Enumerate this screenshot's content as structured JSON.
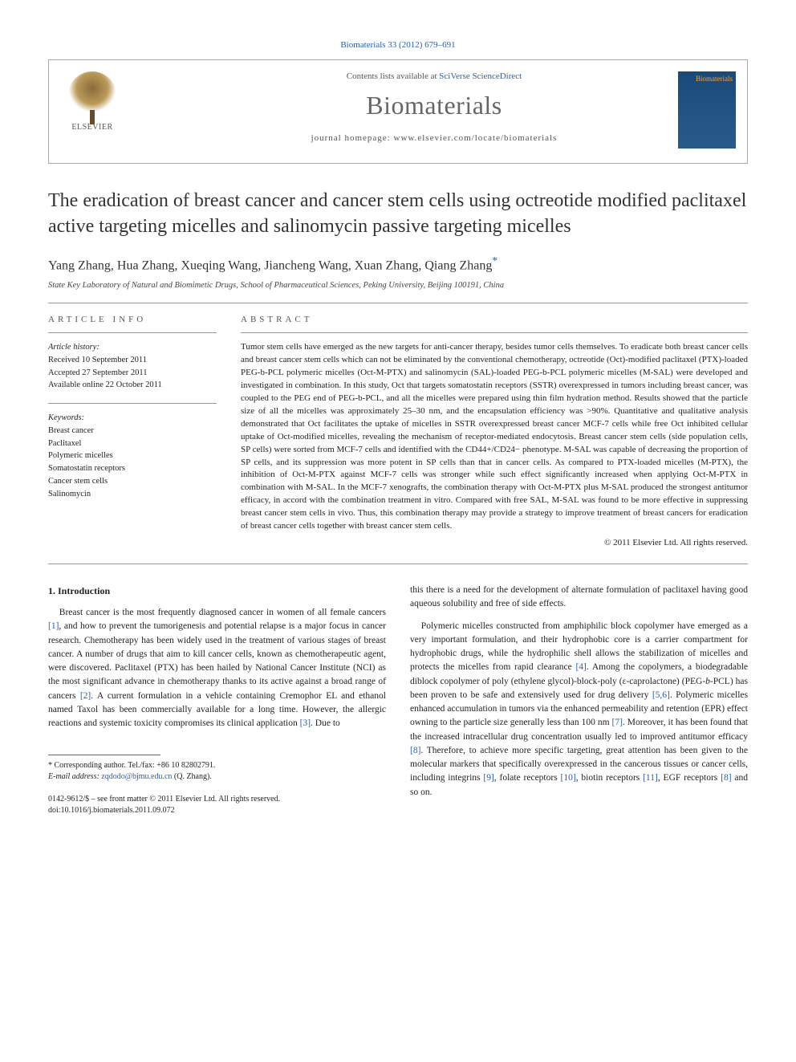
{
  "header": {
    "citation_prefix": "Biomaterials 33 (2012) 679–691",
    "contents_text": "Contents lists available at ",
    "contents_link": "SciVerse ScienceDirect",
    "journal_name": "Biomaterials",
    "homepage_prefix": "journal homepage: ",
    "homepage_url": "www.elsevier.com/locate/biomaterials",
    "elsevier_label": "ELSEVIER",
    "cover_label": "Biomaterials"
  },
  "article": {
    "title": "The eradication of breast cancer and cancer stem cells using octreotide modified paclitaxel active targeting micelles and salinomycin passive targeting micelles",
    "authors": "Yang Zhang, Hua Zhang, Xueqing Wang, Jiancheng Wang, Xuan Zhang, Qiang Zhang",
    "corr_mark": "*",
    "affiliation": "State Key Laboratory of Natural and Biomimetic Drugs, School of Pharmaceutical Sciences, Peking University, Beijing 100191, China"
  },
  "info": {
    "heading": "ARTICLE INFO",
    "history_label": "Article history:",
    "received": "Received 10 September 2011",
    "accepted": "Accepted 27 September 2011",
    "available": "Available online 22 October 2011",
    "keywords_label": "Keywords:",
    "keywords": [
      "Breast cancer",
      "Paclitaxel",
      "Polymeric micelles",
      "Somatostatin receptors",
      "Cancer stem cells",
      "Salinomycin"
    ]
  },
  "abstract": {
    "heading": "ABSTRACT",
    "text": "Tumor stem cells have emerged as the new targets for anti-cancer therapy, besides tumor cells themselves. To eradicate both breast cancer cells and breast cancer stem cells which can not be eliminated by the conventional chemotherapy, octreotide (Oct)-modified paclitaxel (PTX)-loaded PEG-b-PCL polymeric micelles (Oct-M-PTX) and salinomycin (SAL)-loaded PEG-b-PCL polymeric micelles (M-SAL) were developed and investigated in combination. In this study, Oct that targets somatostatin receptors (SSTR) overexpressed in tumors including breast cancer, was coupled to the PEG end of PEG-b-PCL, and all the micelles were prepared using thin film hydration method. Results showed that the particle size of all the micelles was approximately 25–30 nm, and the encapsulation efficiency was >90%. Quantitative and qualitative analysis demonstrated that Oct facilitates the uptake of micelles in SSTR overexpressed breast cancer MCF-7 cells while free Oct inhibited cellular uptake of Oct-modified micelles, revealing the mechanism of receptor-mediated endocytosis. Breast cancer stem cells (side population cells, SP cells) were sorted from MCF-7 cells and identified with the CD44+/CD24− phenotype. M-SAL was capable of decreasing the proportion of SP cells, and its suppression was more potent in SP cells than that in cancer cells. As compared to PTX-loaded micelles (M-PTX), the inhibition of Oct-M-PTX against MCF-7 cells was stronger while such effect significantly increased when applying Oct-M-PTX in combination with M-SAL. In the MCF-7 xenografts, the combination therapy with Oct-M-PTX plus M-SAL produced the strongest antitumor efficacy, in accord with the combination treatment in vitro. Compared with free SAL, M-SAL was found to be more effective in suppressing breast cancer stem cells in vivo. Thus, this combination therapy may provide a strategy to improve treatment of breast cancers for eradication of breast cancer cells together with breast cancer stem cells.",
    "copyright": "© 2011 Elsevier Ltd. All rights reserved."
  },
  "body": {
    "section1_heading": "1. Introduction",
    "p1": "Breast cancer is the most frequently diagnosed cancer in women of all female cancers [1], and how to prevent the tumorigenesis and potential relapse is a major focus in cancer research. Chemotherapy has been widely used in the treatment of various stages of breast cancer. A number of drugs that aim to kill cancer cells, known as chemotherapeutic agent, were discovered. Paclitaxel (PTX) has been hailed by National Cancer Institute (NCI) as the most significant advance in chemotherapy thanks to its active against a broad range of cancers [2]. A current formulation in a vehicle containing Cremophor EL and ethanol named Taxol has been commercially available for a long time. However, the allergic reactions and systemic toxicity compromises its clinical application [3]. Due to",
    "p2": "this there is a need for the development of alternate formulation of paclitaxel having good aqueous solubility and free of side effects.",
    "p3": "Polymeric micelles constructed from amphiphilic block copolymer have emerged as a very important formulation, and their hydrophobic core is a carrier compartment for hydrophobic drugs, while the hydrophilic shell allows the stabilization of micelles and protects the micelles from rapid clearance [4]. Among the copolymers, a biodegradable diblock copolymer of poly (ethylene glycol)-block-poly (ε-caprolactone) (PEG-b-PCL) has been proven to be safe and extensively used for drug delivery [5,6]. Polymeric micelles enhanced accumulation in tumors via the enhanced permeability and retention (EPR) effect owning to the particle size generally less than 100 nm [7]. Moreover, it has been found that the increased intracellular drug concentration usually led to improved antitumor efficacy [8]. Therefore, to achieve more specific targeting, great attention has been given to the molecular markers that specifically overexpressed in the cancerous tissues or cancer cells, including integrins [9], folate receptors [10], biotin receptors [11], EGF receptors [8] and so on."
  },
  "footer": {
    "corr_label": "* Corresponding author. Tel./fax: +86 10 82802791.",
    "email_label": "E-mail address: ",
    "email": "zqdodo@bjmu.edu.cn",
    "email_suffix": " (Q. Zhang).",
    "issn": "0142-9612/$ – see front matter © 2011 Elsevier Ltd. All rights reserved.",
    "doi_label": "doi:",
    "doi": "10.1016/j.biomaterials.2011.09.072"
  },
  "refs": {
    "r1": "[1]",
    "r2": "[2]",
    "r3": "[3]",
    "r4": "[4]",
    "r5": "[5,6]",
    "r7": "[7]",
    "r8": "[8]",
    "r9": "[9]",
    "r10": "[10]",
    "r11": "[11]",
    "r8b": "[8]"
  }
}
